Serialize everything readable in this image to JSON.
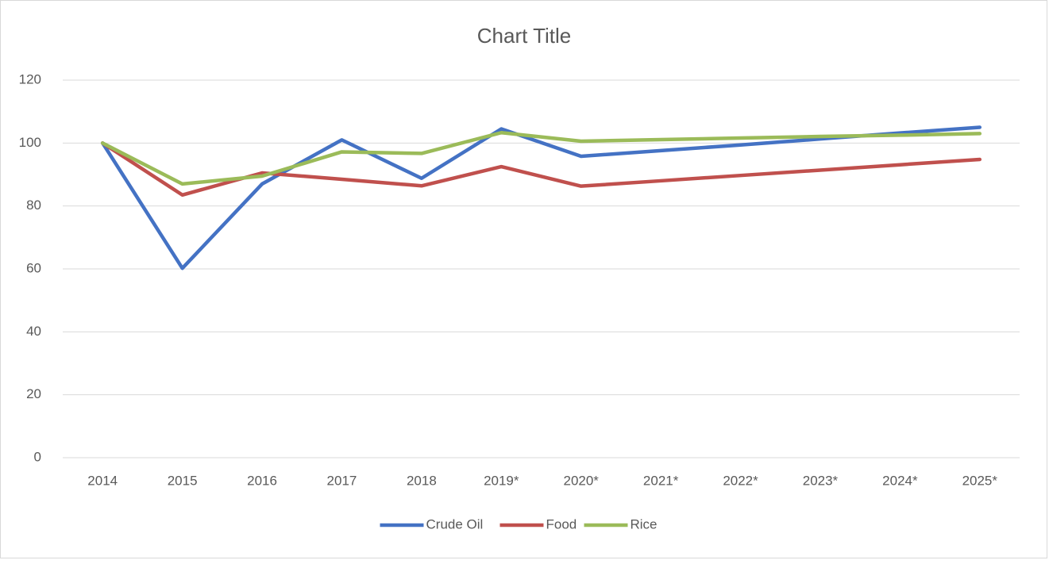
{
  "chart_data": {
    "type": "line",
    "title": "Chart Title",
    "categories": [
      "2014",
      "2015",
      "2016",
      "2017",
      "2018",
      "2019*",
      "2020*",
      "2021*",
      "2022*",
      "2023*",
      "2024*",
      "2025*"
    ],
    "series": [
      {
        "name": "Crude Oil",
        "color": "#4472c4",
        "values": [
          100,
          60.2,
          87,
          101,
          88.8,
          104.5,
          95.8,
          97.6,
          99.4,
          101.3,
          103.2,
          105
        ]
      },
      {
        "name": "Food",
        "color": "#c0504d",
        "values": [
          100,
          83.5,
          90.5,
          88.5,
          86.4,
          92.5,
          86.3,
          88,
          89.7,
          91.4,
          93.1,
          94.8
        ]
      },
      {
        "name": "Rice",
        "color": "#9bbb59",
        "values": [
          100,
          87,
          89.5,
          97.2,
          96.7,
          103.3,
          100.6,
          101.1,
          101.6,
          102.1,
          102.5,
          103
        ]
      }
    ],
    "ylim": [
      0,
      120
    ],
    "yticks": [
      0,
      20,
      40,
      60,
      80,
      100,
      120
    ],
    "grid": true,
    "legend": "bottom"
  }
}
